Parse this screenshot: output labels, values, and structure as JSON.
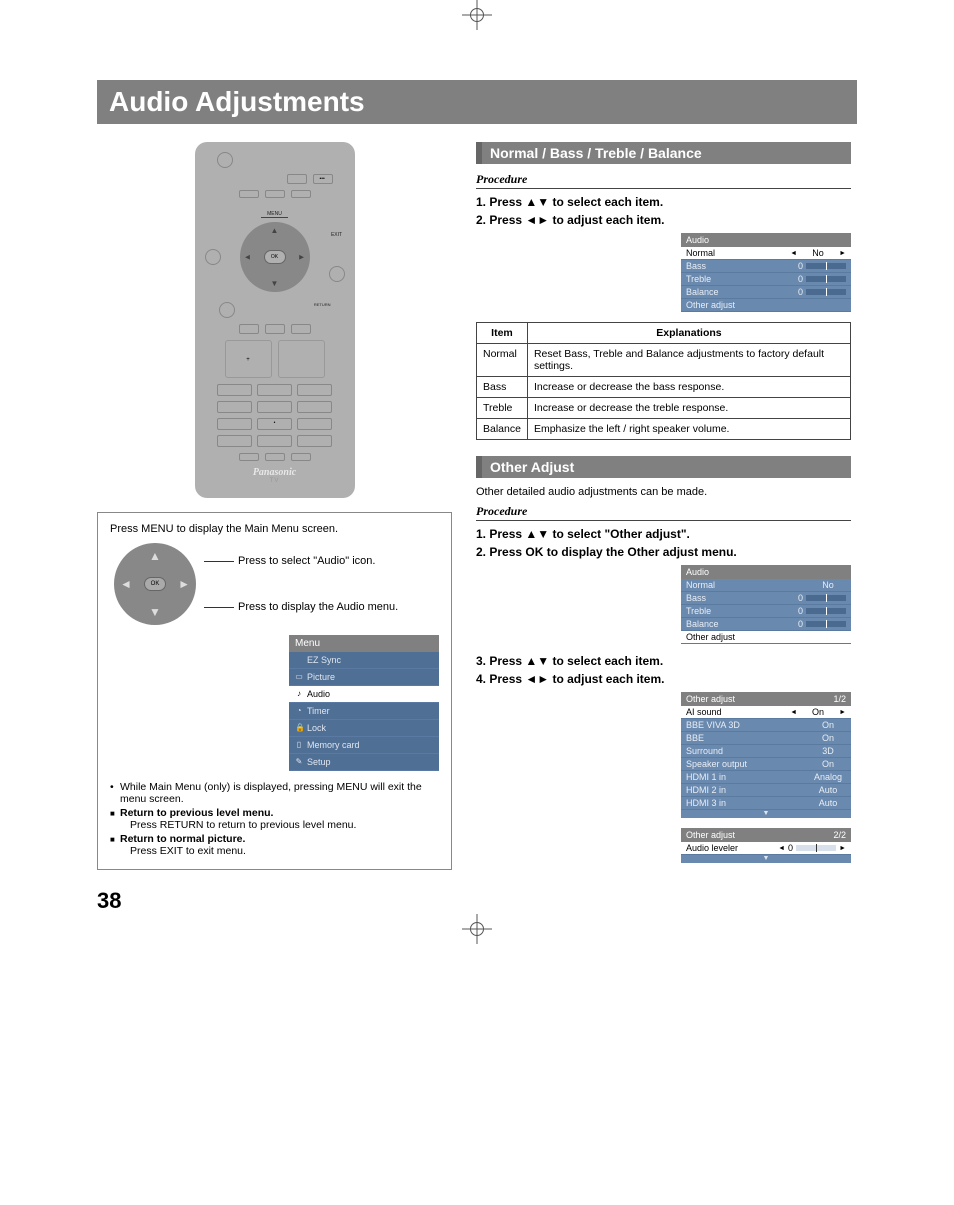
{
  "pageTitle": "Audio Adjustments",
  "pageNumber": "38",
  "remote": {
    "menuLabel": "MENU",
    "exitLabel": "EXIT",
    "returnLabel": "RETURN",
    "okLabel": "OK",
    "brand": "Panasonic",
    "device": "TV"
  },
  "leftBox": {
    "line1": "Press MENU to display the Main Menu screen.",
    "callout1": "Press to select \"Audio\" icon.",
    "callout2": "Press to display the Audio menu.",
    "mainMenu": {
      "header": "Menu",
      "items": [
        {
          "icon": "",
          "label": "EZ Sync"
        },
        {
          "icon": "▭",
          "label": "Picture"
        },
        {
          "icon": "♪",
          "label": "Audio",
          "selected": true
        },
        {
          "icon": "◔",
          "label": "Timer"
        },
        {
          "icon": "🔒",
          "label": "Lock"
        },
        {
          "icon": "▯",
          "label": "Memory card"
        },
        {
          "icon": "✎",
          "label": "Setup"
        }
      ]
    },
    "notes": {
      "n1": "While Main Menu (only) is displayed, pressing MENU will exit the menu screen.",
      "n2_title": "Return to previous level menu.",
      "n2_body": "Press RETURN to return to previous level menu.",
      "n3_title": "Return to normal picture.",
      "n3_body": "Press EXIT to exit menu."
    }
  },
  "section1": {
    "title": "Normal / Bass / Treble / Balance",
    "procedureLabel": "Procedure",
    "step1": "1.  Press ▲▼ to select each item.",
    "step2": "2.  Press ◄► to adjust each item.",
    "osd": {
      "header": "Audio",
      "rows": [
        {
          "label": "Normal",
          "value": "No",
          "selected": true,
          "arrows": true
        },
        {
          "label": "Bass",
          "value": "0",
          "slider": true
        },
        {
          "label": "Treble",
          "value": "0",
          "slider": true
        },
        {
          "label": "Balance",
          "value": "0",
          "slider": true
        },
        {
          "label": "Other adjust",
          "value": ""
        }
      ]
    },
    "table": {
      "head": [
        "Item",
        "Explanations"
      ],
      "rows": [
        [
          "Normal",
          "Reset Bass, Treble and Balance adjustments to factory default settings."
        ],
        [
          "Bass",
          "Increase or decrease the bass response."
        ],
        [
          "Treble",
          "Increase or decrease the treble response."
        ],
        [
          "Balance",
          "Emphasize the left / right speaker volume."
        ]
      ]
    }
  },
  "section2": {
    "title": "Other Adjust",
    "intro": "Other detailed audio adjustments can be made.",
    "procedureLabel": "Procedure",
    "step1": "1.  Press ▲▼ to select \"Other adjust\".",
    "step2": "2.  Press OK to display the Other adjust menu.",
    "step3": "3.  Press ▲▼ to select each item.",
    "step4": "4.  Press ◄► to adjust each item.",
    "osd1": {
      "header": "Audio",
      "rows": [
        {
          "label": "Normal",
          "value": "No"
        },
        {
          "label": "Bass",
          "value": "0",
          "slider": true
        },
        {
          "label": "Treble",
          "value": "0",
          "slider": true
        },
        {
          "label": "Balance",
          "value": "0",
          "slider": true
        },
        {
          "label": "Other adjust",
          "value": "",
          "selected": true
        }
      ]
    },
    "osd2a": {
      "header": "Other adjust",
      "page": "1/2",
      "rows": [
        {
          "label": "AI sound",
          "value": "On",
          "selected": true,
          "arrows": true
        },
        {
          "label": "BBE VIVA 3D",
          "value": "On"
        },
        {
          "label": "BBE",
          "value": "On"
        },
        {
          "label": "Surround",
          "value": "3D"
        },
        {
          "label": "Speaker output",
          "value": "On"
        },
        {
          "label": "HDMI 1 in",
          "value": "Analog"
        },
        {
          "label": "HDMI 2 in",
          "value": "Auto"
        },
        {
          "label": "HDMI 3 in",
          "value": "Auto"
        }
      ],
      "footer": "▼"
    },
    "osd2b": {
      "header": "Other adjust",
      "page": "2/2",
      "rows": [
        {
          "label": "Audio leveler",
          "value": "0",
          "selected": true,
          "slider": true,
          "arrows": true
        }
      ],
      "footer": "▼"
    }
  },
  "colors": {
    "titleBar": "#808080",
    "sectionBar": "#808080",
    "sectionBarAccent": "#666666",
    "osdHeader": "#808080",
    "osdRow": "#6a89af",
    "osdSelected": "#ffffff",
    "menuRow": "#4f6f95"
  }
}
